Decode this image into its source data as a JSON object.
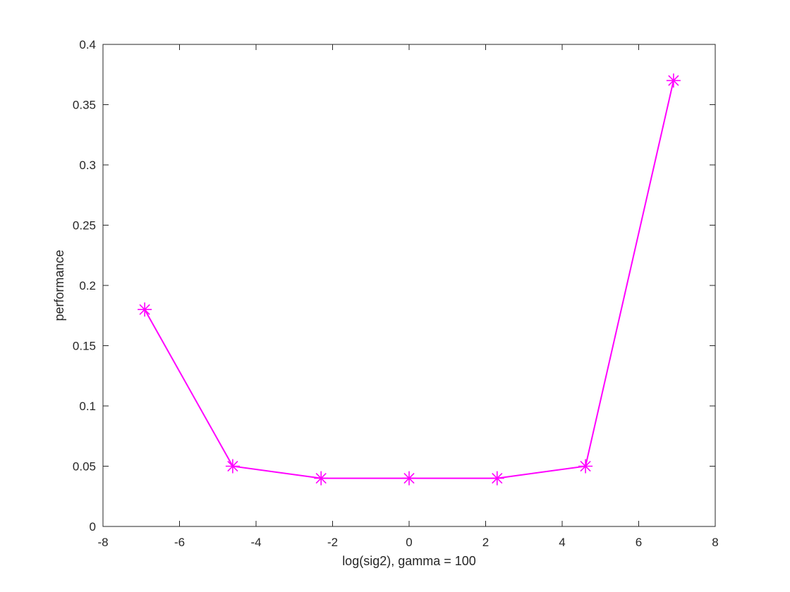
{
  "chart_data": {
    "type": "line",
    "title": "",
    "xlabel": "log(sig2), gamma = 100",
    "ylabel": "performance",
    "xlim": [
      -8,
      8
    ],
    "ylim": [
      0,
      0.4
    ],
    "xticks": [
      -8,
      -6,
      -4,
      -2,
      0,
      2,
      4,
      6,
      8
    ],
    "xtick_labels": [
      "-8",
      "-6",
      "-4",
      "-2",
      "0",
      "2",
      "4",
      "6",
      "8"
    ],
    "yticks": [
      0,
      0.05,
      0.1,
      0.15,
      0.2,
      0.25,
      0.3,
      0.35,
      0.4
    ],
    "ytick_labels": [
      "0",
      "0.05",
      "0.1",
      "0.15",
      "0.2",
      "0.25",
      "0.3",
      "0.35",
      "0.4"
    ],
    "grid": false,
    "legend": "none",
    "series": [
      {
        "color": "#ff00ff",
        "marker": "asterisk",
        "x": [
          -6.91,
          -4.61,
          -2.3,
          0,
          2.3,
          4.61,
          6.91
        ],
        "y": [
          0.18,
          0.05,
          0.04,
          0.04,
          0.04,
          0.05,
          0.37
        ]
      }
    ]
  }
}
